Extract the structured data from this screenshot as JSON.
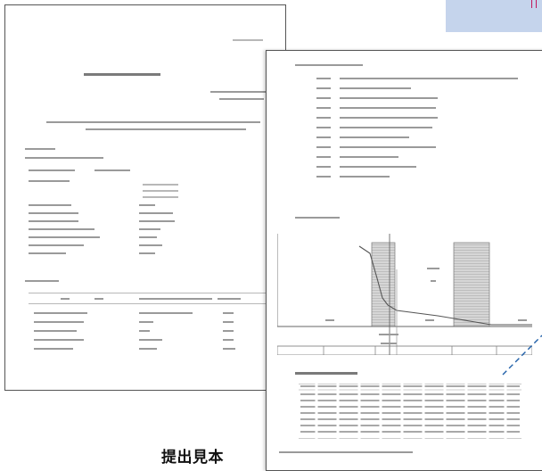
{
  "caption": {
    "label": "提出見本"
  },
  "colors": {
    "corner_panel": "#c5d4ec",
    "corner_mark": "#c2185b",
    "callout": "#1f5fa8"
  },
  "icons": {
    "corner_mark": "pink-bracket-mark",
    "callout": "dashed-callout-line"
  }
}
